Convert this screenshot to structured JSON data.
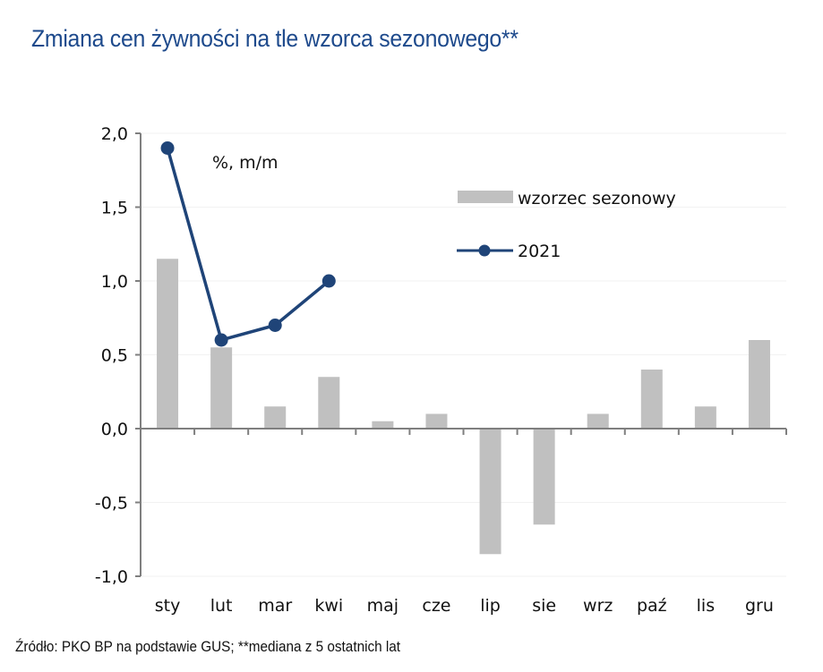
{
  "title": "Zmiana cen żywności na tle wzorca sezonowego**",
  "unit_label": "%, m/m",
  "source": "Źródło: PKO BP na podstawie GUS; **mediana z 5 ostatnich lat",
  "colors": {
    "title": "#1e4a8c",
    "bar": "#c0c0c0",
    "line": "#1f4478",
    "axis": "#7f7f7f",
    "grid": "#f2f2f2"
  },
  "chart_data": {
    "type": "bar",
    "title": "Zmiana cen żywności na tle wzorca sezonowego**",
    "xlabel": "",
    "ylabel": "%, m/m",
    "ylim": [
      -1.0,
      2.0
    ],
    "yticks": [
      -1.0,
      -0.5,
      0.0,
      0.5,
      1.0,
      1.5,
      2.0
    ],
    "ytick_labels": [
      "-1,0",
      "-0,5",
      "0,0",
      "0,5",
      "1,0",
      "1,5",
      "2,0"
    ],
    "grid": true,
    "legend_position": "upper right",
    "categories": [
      "sty",
      "lut",
      "mar",
      "kwi",
      "maj",
      "cze",
      "lip",
      "sie",
      "wrz",
      "paź",
      "lis",
      "gru"
    ],
    "series": [
      {
        "name": "wzorzec sezonowy",
        "type": "bar",
        "values": [
          1.15,
          0.55,
          0.15,
          0.35,
          0.05,
          0.1,
          -0.85,
          -0.65,
          0.1,
          0.4,
          0.15,
          0.6
        ]
      },
      {
        "name": "2021",
        "type": "line",
        "values": [
          1.9,
          0.6,
          0.7,
          1.0,
          null,
          null,
          null,
          null,
          null,
          null,
          null,
          null
        ]
      }
    ]
  },
  "legend": {
    "items": [
      {
        "label": "wzorzec sezonowy",
        "kind": "bar"
      },
      {
        "label": "2021",
        "kind": "line"
      }
    ]
  }
}
